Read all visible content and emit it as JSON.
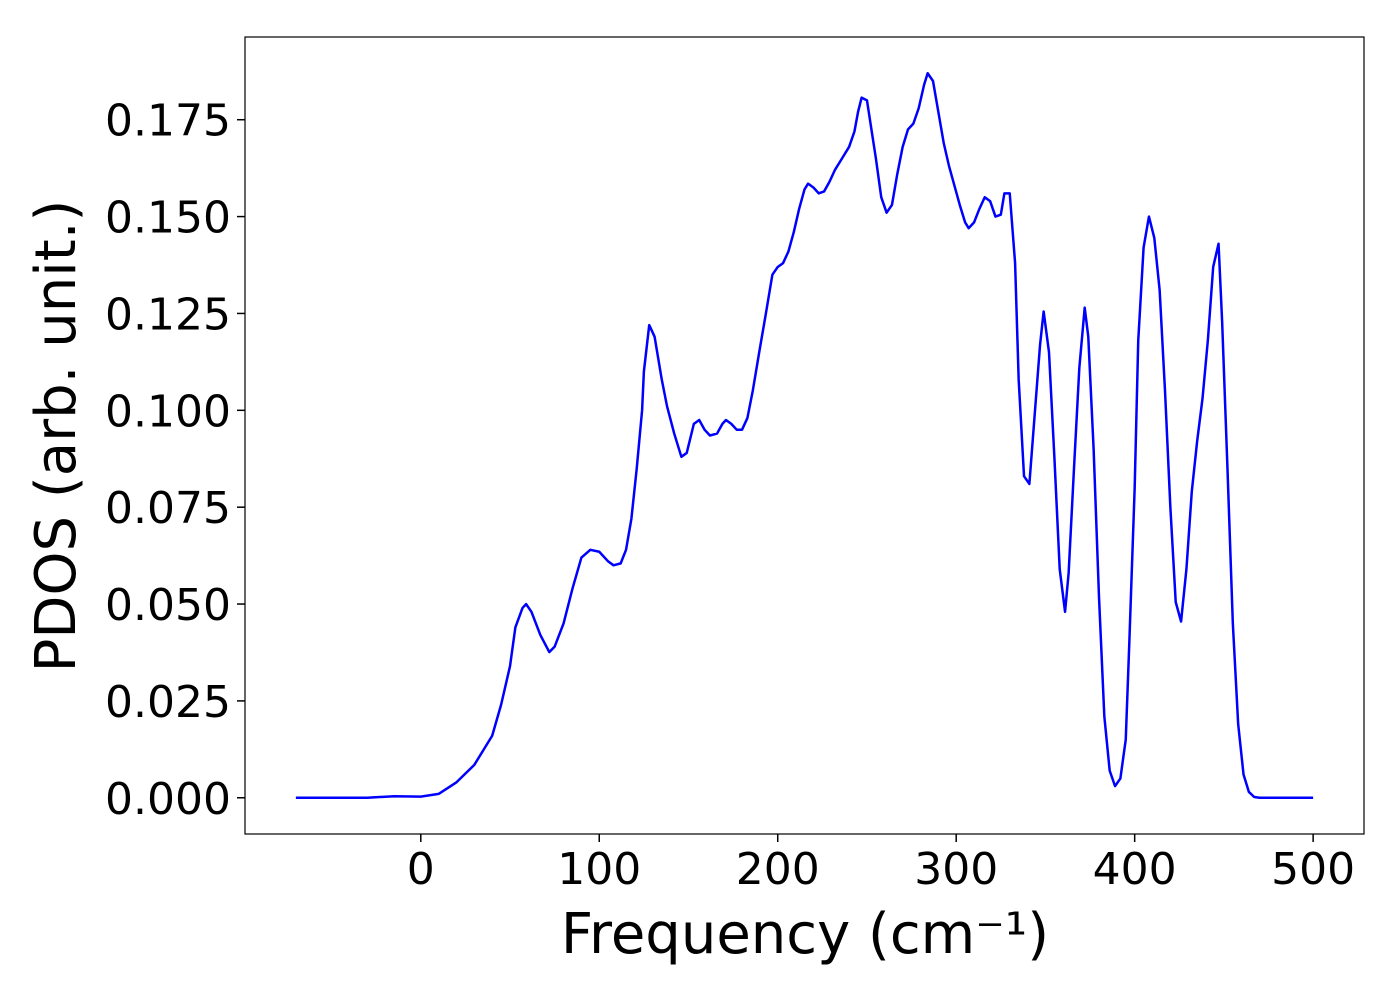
{
  "chart_data": {
    "type": "line",
    "xlabel": "Frequency (cm⁻¹)",
    "ylabel": "PDOS (arb. unit.)",
    "x": [
      -70,
      -30,
      -15,
      0,
      10,
      20,
      30,
      40,
      45,
      50,
      53,
      57,
      59,
      62,
      67,
      72,
      75,
      80,
      85,
      90,
      95,
      100,
      105,
      108,
      112,
      115,
      118,
      121,
      124,
      125,
      128,
      131,
      135,
      138,
      142,
      146,
      149,
      153,
      156,
      159,
      162,
      166,
      169,
      171,
      174,
      177,
      180,
      183,
      186,
      190,
      193,
      197,
      200,
      203,
      206,
      209,
      212,
      215,
      217,
      220,
      223,
      226,
      229,
      232,
      236,
      240,
      243,
      245,
      247,
      250,
      252,
      255,
      258,
      261,
      264,
      267,
      270,
      273,
      276,
      279,
      282,
      284,
      287,
      290,
      293,
      296,
      299,
      302,
      305,
      307,
      310,
      313,
      316,
      319,
      322,
      325,
      327,
      330,
      333,
      335,
      338,
      341,
      344,
      347,
      349,
      352,
      355,
      358,
      361,
      363,
      366,
      369,
      372,
      374,
      377,
      380,
      383,
      386,
      389,
      392,
      395,
      397,
      400,
      402,
      405,
      408,
      411,
      414,
      417,
      420,
      423,
      426,
      429,
      432,
      435,
      438,
      441,
      444,
      447,
      449,
      452,
      455,
      458,
      461,
      464,
      467,
      470,
      480,
      500
    ],
    "series": [
      {
        "color": "#0000ff",
        "values": [
          0,
          0,
          0.0004,
          0.0003,
          0.001,
          0.004,
          0.0085,
          0.016,
          0.024,
          0.034,
          0.044,
          0.049,
          0.05,
          0.048,
          0.042,
          0.0376,
          0.039,
          0.045,
          0.054,
          0.062,
          0.064,
          0.0635,
          0.061,
          0.06,
          0.0605,
          0.064,
          0.072,
          0.085,
          0.1,
          0.11,
          0.122,
          0.119,
          0.108,
          0.101,
          0.094,
          0.088,
          0.089,
          0.0965,
          0.0975,
          0.095,
          0.0935,
          0.094,
          0.0965,
          0.0975,
          0.0965,
          0.095,
          0.095,
          0.098,
          0.105,
          0.116,
          0.124,
          0.135,
          0.137,
          0.138,
          0.141,
          0.146,
          0.152,
          0.157,
          0.1585,
          0.1575,
          0.156,
          0.1565,
          0.159,
          0.162,
          0.165,
          0.168,
          0.172,
          0.177,
          0.1807,
          0.18,
          0.174,
          0.165,
          0.155,
          0.151,
          0.153,
          0.161,
          0.168,
          0.1725,
          0.174,
          0.178,
          0.184,
          0.187,
          0.185,
          0.177,
          0.169,
          0.163,
          0.158,
          0.153,
          0.1485,
          0.147,
          0.1485,
          0.152,
          0.155,
          0.154,
          0.15,
          0.1505,
          0.156,
          0.156,
          0.138,
          0.108,
          0.083,
          0.081,
          0.099,
          0.117,
          0.1255,
          0.115,
          0.088,
          0.059,
          0.048,
          0.058,
          0.085,
          0.111,
          0.1265,
          0.119,
          0.09,
          0.052,
          0.021,
          0.007,
          0.003,
          0.005,
          0.015,
          0.04,
          0.08,
          0.118,
          0.142,
          0.15,
          0.1445,
          0.131,
          0.105,
          0.075,
          0.0505,
          0.0455,
          0.059,
          0.079,
          0.092,
          0.103,
          0.118,
          0.137,
          0.143,
          0.123,
          0.085,
          0.045,
          0.019,
          0.006,
          0.0015,
          0.0002,
          0,
          0,
          0
        ]
      }
    ],
    "xlim": [
      -98.5,
      528.5
    ],
    "ylim": [
      -0.00935,
      0.19635
    ],
    "xticks": [
      0,
      100,
      200,
      300,
      400,
      500
    ],
    "yticks": [
      {
        "value": 0,
        "label": "0.000"
      },
      0.025,
      {
        "value": 0.05,
        "label": "0.050"
      },
      0.075,
      {
        "value": 0.1,
        "label": "0.100"
      },
      0.125,
      {
        "value": 0.15,
        "label": "0.150"
      },
      0.175
    ]
  }
}
